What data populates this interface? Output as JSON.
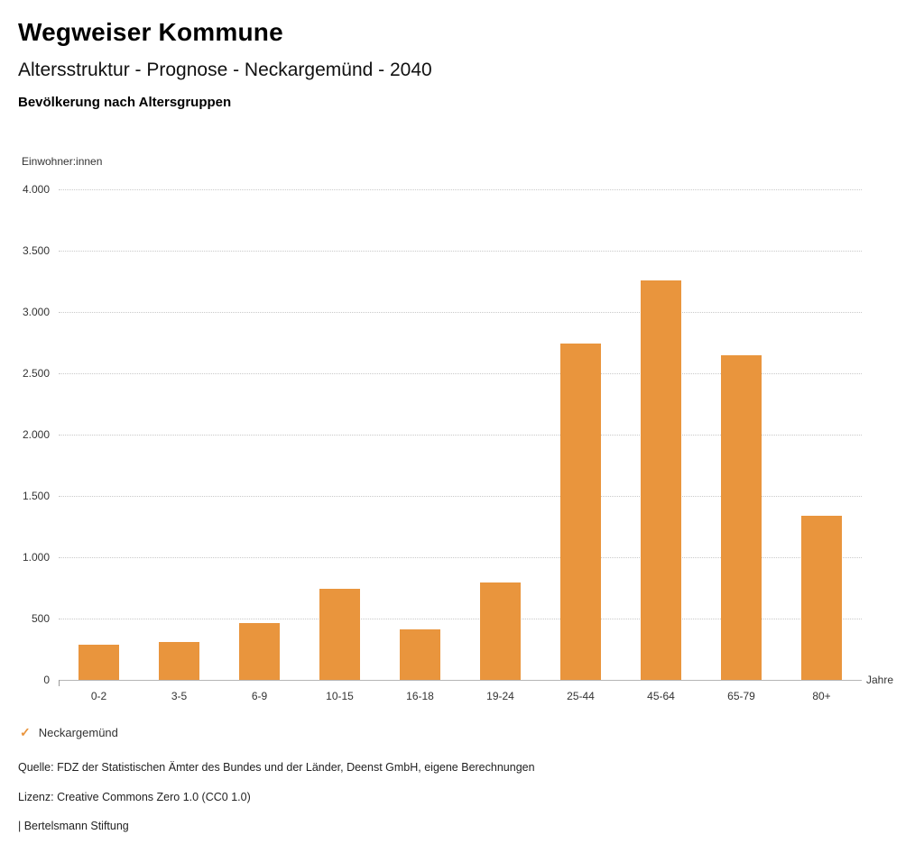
{
  "header": {
    "title": "Wegweiser Kommune",
    "subtitle": "Altersstruktur - Prognose - Neckargemünd - 2040",
    "chart_heading": "Bevölkerung nach Altersgruppen"
  },
  "chart_data": {
    "type": "bar",
    "title": "Bevölkerung nach Altersgruppen",
    "categories": [
      "0-2",
      "3-5",
      "6-9",
      "10-15",
      "16-18",
      "19-24",
      "25-44",
      "45-64",
      "65-79",
      "80+"
    ],
    "values": [
      290,
      310,
      460,
      740,
      415,
      795,
      2745,
      3260,
      2650,
      1340
    ],
    "series_name": "Neckargemünd",
    "ylabel": "Einwohner:innen",
    "xlabel": "Jahre",
    "ylim": [
      0,
      4000
    ],
    "ytick_interval": 500,
    "ytick_labels": [
      "0",
      "500",
      "1.000",
      "1.500",
      "2.000",
      "2.500",
      "3.000",
      "3.500",
      "4.000"
    ],
    "grid": true,
    "bar_color": "#E9953D",
    "legend_position": "bottom-left"
  },
  "legend": {
    "marker": "check-icon",
    "marker_color": "#E9953D",
    "label": "Neckargemünd"
  },
  "footer": {
    "source": "Quelle: FDZ der Statistischen Ämter des Bundes und der Länder, Deenst GmbH, eigene Berechnungen",
    "license": "Lizenz: Creative Commons Zero 1.0 (CC0 1.0)",
    "attribution": "| Bertelsmann Stiftung"
  }
}
